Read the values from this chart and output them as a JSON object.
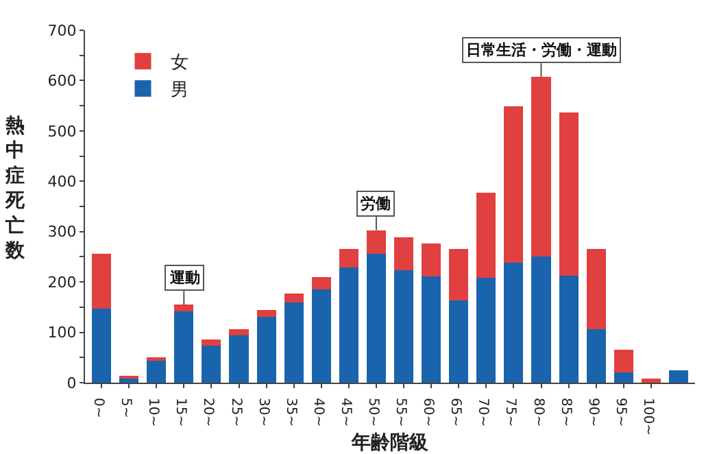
{
  "chart_data": {
    "type": "bar",
    "stacked": true,
    "xlabel": "年齢階級",
    "ylabel": "熱中症死亡数",
    "categories": [
      "0~",
      "5~",
      "10~",
      "15~",
      "20~",
      "25~",
      "30~",
      "35~",
      "40~",
      "45~",
      "50~",
      "55~",
      "60~",
      "65~",
      "70~",
      "75~",
      "80~",
      "85~",
      "90~",
      "95~",
      "100~",
      null
    ],
    "series": [
      {
        "name": "男",
        "color": "#1a64ad",
        "values": [
          147,
          9,
          45,
          141,
          73,
          94,
          131,
          160,
          185,
          229,
          256,
          223,
          211,
          164,
          209,
          239,
          250,
          213,
          106,
          21,
          0,
          24
        ]
      },
      {
        "name": "女",
        "color": "#e04040",
        "values": [
          109,
          4,
          5,
          14,
          13,
          12,
          14,
          17,
          25,
          36,
          47,
          66,
          66,
          102,
          168,
          310,
          357,
          323,
          159,
          44,
          8,
          0
        ]
      }
    ],
    "ylim": [
      0,
      700
    ],
    "yticks": [
      0,
      {
        "value": 50,
        "label": null
      },
      100,
      {
        "value": 150,
        "label": null
      },
      200,
      {
        "value": 250,
        "label": null
      },
      300,
      {
        "value": 350,
        "label": null
      },
      400,
      {
        "value": 450,
        "label": null
      },
      500,
      {
        "value": 550,
        "label": null
      },
      600,
      {
        "value": 650,
        "label": null
      },
      700
    ],
    "grid": false,
    "legend": "top left",
    "annotations": [
      {
        "text": "運動",
        "x": "15~",
        "y": 155
      },
      {
        "text": "労働",
        "x": "50~",
        "y": 303
      },
      {
        "text": "日常生活・労働・運動",
        "x": "80~",
        "y": 607
      }
    ]
  }
}
